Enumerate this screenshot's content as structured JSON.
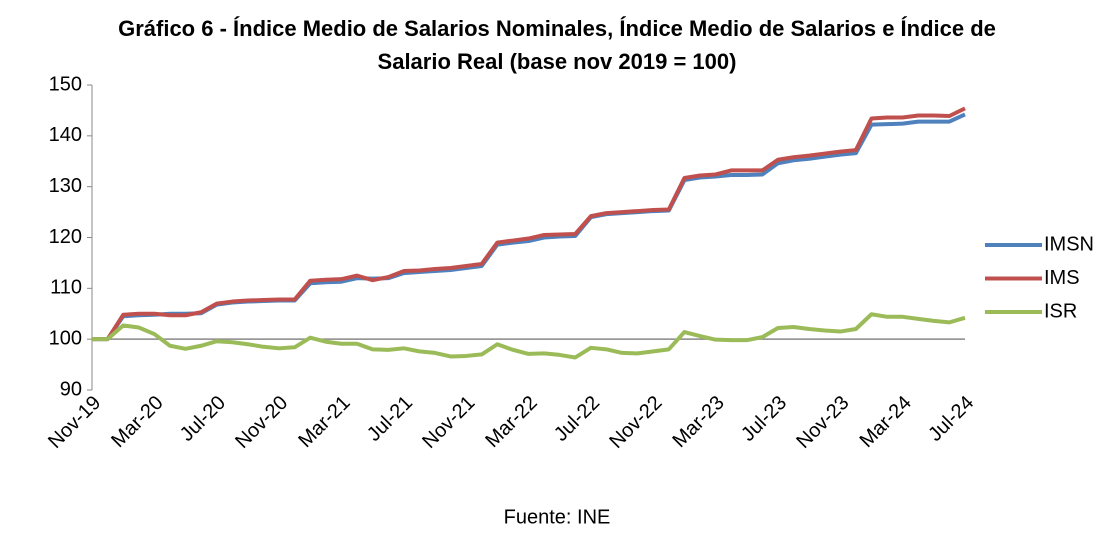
{
  "chart_data": {
    "type": "line",
    "title": "Gráfico 6 - Índice Medio de Salarios Nominales, Índice Medio de Salarios e Índice de Salario Real (base nov 2019 = 100)",
    "source": "Fuente: INE",
    "categories": [
      "Nov-19",
      null,
      null,
      null,
      "Mar-20",
      null,
      null,
      null,
      "Jul-20",
      null,
      null,
      null,
      "Nov-20",
      null,
      null,
      null,
      "Mar-21",
      null,
      null,
      null,
      "Jul-21",
      null,
      null,
      null,
      "Nov-21",
      null,
      null,
      null,
      "Mar-22",
      null,
      null,
      null,
      "Jul-22",
      null,
      null,
      null,
      "Nov-22",
      null,
      null,
      null,
      "Mar-23",
      null,
      null,
      null,
      "Jul-23",
      null,
      null,
      null,
      "Nov-23",
      null,
      null,
      null,
      "Mar-24",
      null,
      null,
      null,
      "Jul-24"
    ],
    "series": [
      {
        "name": "IMSN",
        "color": "#4f81bd",
        "values": [
          100,
          100,
          104.5,
          104.7,
          104.8,
          105,
          105,
          105.1,
          106.8,
          107.2,
          107.4,
          107.5,
          107.6,
          107.6,
          111,
          111.2,
          111.3,
          112,
          111.9,
          112,
          113,
          113.2,
          113.4,
          113.6,
          114,
          114.4,
          118.6,
          119,
          119.3,
          120,
          120.2,
          120.3,
          124,
          124.6,
          124.8,
          125,
          125.2,
          125.3,
          131.3,
          131.8,
          132,
          132.3,
          132.3,
          132.4,
          134.6,
          135.2,
          135.5,
          135.9,
          136.3,
          136.6,
          142.2,
          142.3,
          142.4,
          142.8,
          142.8,
          142.8,
          144.2
        ]
      },
      {
        "name": "IMS",
        "color": "#c0504d",
        "values": [
          100,
          100,
          104.8,
          105,
          105,
          104.7,
          104.7,
          105.3,
          107,
          107.4,
          107.6,
          107.7,
          107.8,
          107.8,
          111.5,
          111.7,
          111.8,
          112.5,
          111.6,
          112.2,
          113.4,
          113.5,
          113.8,
          114,
          114.4,
          114.8,
          119,
          119.4,
          119.8,
          120.5,
          120.6,
          120.7,
          124.2,
          124.8,
          125,
          125.2,
          125.4,
          125.5,
          131.7,
          132.2,
          132.4,
          133.2,
          133.2,
          133.2,
          135.3,
          135.8,
          136.1,
          136.5,
          136.9,
          137.2,
          143.4,
          143.6,
          143.6,
          144,
          144,
          143.9,
          145.4
        ]
      },
      {
        "name": "ISR",
        "color": "#9bbb59",
        "values": [
          100,
          100,
          102.7,
          102.3,
          101,
          98.7,
          98.1,
          98.7,
          99.6,
          99.4,
          99,
          98.5,
          98.2,
          98.4,
          100.3,
          99.5,
          99.1,
          99.1,
          98,
          97.9,
          98.2,
          97.6,
          97.3,
          96.6,
          96.7,
          97,
          99,
          97.9,
          97.1,
          97.2,
          96.9,
          96.4,
          98.3,
          98,
          97.3,
          97.2,
          97.6,
          98,
          101.4,
          100.6,
          99.9,
          99.8,
          99.8,
          100.4,
          102.2,
          102.4,
          102,
          101.7,
          101.5,
          102,
          104.9,
          104.4,
          104.4,
          104,
          103.6,
          103.3,
          104.2
        ]
      }
    ],
    "ylim": [
      90,
      150
    ],
    "yticks": [
      90,
      100,
      110,
      120,
      130,
      140,
      150
    ],
    "x_axis_crosses": 100,
    "legend": "right",
    "grid": false
  }
}
